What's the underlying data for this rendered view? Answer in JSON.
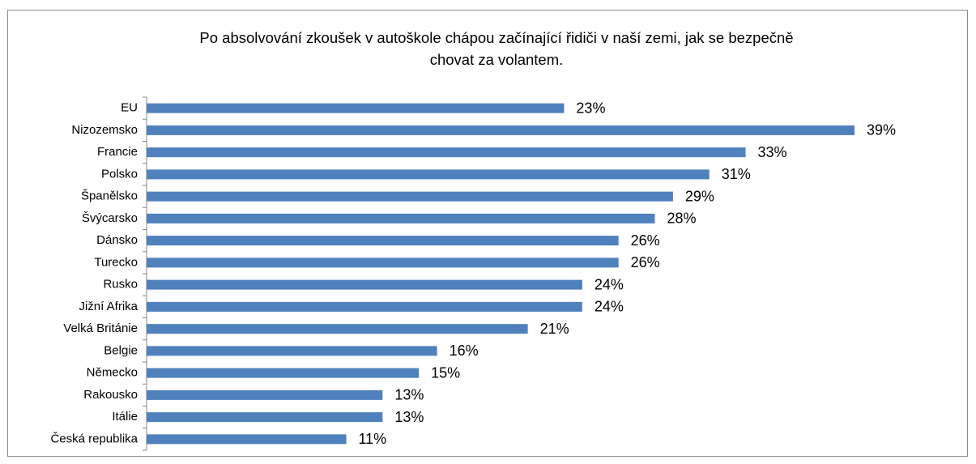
{
  "chart_data": {
    "type": "hbar",
    "title": [
      "Po absolvování zkoušek v autoškole chápou začínající řidiči v naší zemi, jak se bezpečně",
      "chovat za volantem."
    ],
    "categories": [
      "EU",
      "Nizozemsko",
      "Francie",
      "Polsko",
      "Španělsko",
      "Švýcarsko",
      "Dánsko",
      "Turecko",
      "Rusko",
      "Jižní Afrika",
      "Velká Británie",
      "Belgie",
      "Německo",
      "Rakousko",
      "Itálie",
      "Česká republika"
    ],
    "values": [
      23,
      39,
      33,
      31,
      29,
      28,
      26,
      26,
      24,
      24,
      21,
      16,
      15,
      13,
      13,
      11
    ],
    "value_labels": [
      "23%",
      "39%",
      "33%",
      "31%",
      "29%",
      "28%",
      "26%",
      "26%",
      "24%",
      "24%",
      "21%",
      "16%",
      "15%",
      "13%",
      "13%",
      "11%"
    ],
    "color": "#4f81bd"
  }
}
